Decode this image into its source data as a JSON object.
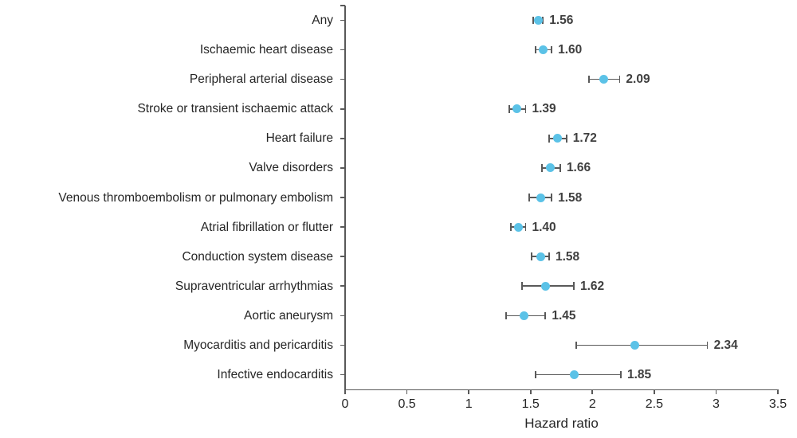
{
  "chart_data": {
    "type": "scatter",
    "variant": "forest-plot-horizontal-error-bars",
    "title": "",
    "xlabel": "Hazard ratio",
    "ylabel": "",
    "xlim": [
      0,
      3.5
    ],
    "xticks": [
      "0",
      "0.5",
      "1",
      "1.5",
      "2",
      "2.5",
      "3",
      "3.5"
    ],
    "grid": false,
    "legend": false,
    "categories": [
      "Any",
      "Ischaemic heart disease",
      "Peripheral arterial disease",
      "Stroke or transient ischaemic attack",
      "Heart failure",
      "Valve disorders",
      "Venous thromboembolism or pulmonary embolism",
      "Atrial fibrillation or flutter",
      "Conduction system disease",
      "Supraventricular arrhythmias",
      "Aortic aneurysm",
      "Myocarditis and pericarditis",
      "Infective endocarditis"
    ],
    "points": [
      {
        "category": "Any",
        "value": 1.56,
        "label": "1.56",
        "ci_lower": 1.52,
        "ci_upper": 1.6
      },
      {
        "category": "Ischaemic heart disease",
        "value": 1.6,
        "label": "1.60",
        "ci_lower": 1.54,
        "ci_upper": 1.67
      },
      {
        "category": "Peripheral arterial disease",
        "value": 2.09,
        "label": "2.09",
        "ci_lower": 1.97,
        "ci_upper": 2.22
      },
      {
        "category": "Stroke or transient ischaemic attack",
        "value": 1.39,
        "label": "1.39",
        "ci_lower": 1.33,
        "ci_upper": 1.46
      },
      {
        "category": "Heart failure",
        "value": 1.72,
        "label": "1.72",
        "ci_lower": 1.65,
        "ci_upper": 1.79
      },
      {
        "category": "Valve disorders",
        "value": 1.66,
        "label": "1.66",
        "ci_lower": 1.59,
        "ci_upper": 1.74
      },
      {
        "category": "Venous thromboembolism or pulmonary embolism",
        "value": 1.58,
        "label": "1.58",
        "ci_lower": 1.49,
        "ci_upper": 1.67
      },
      {
        "category": "Atrial fibrillation or flutter",
        "value": 1.4,
        "label": "1.40",
        "ci_lower": 1.34,
        "ci_upper": 1.46
      },
      {
        "category": "Conduction system disease",
        "value": 1.58,
        "label": "1.58",
        "ci_lower": 1.51,
        "ci_upper": 1.65
      },
      {
        "category": "Supraventricular arrhythmias",
        "value": 1.62,
        "label": "1.62",
        "ci_lower": 1.43,
        "ci_upper": 1.85
      },
      {
        "category": "Aortic aneurysm",
        "value": 1.45,
        "label": "1.45",
        "ci_lower": 1.3,
        "ci_upper": 1.62
      },
      {
        "category": "Myocarditis and pericarditis",
        "value": 2.34,
        "label": "2.34",
        "ci_lower": 1.87,
        "ci_upper": 2.93
      },
      {
        "category": "Infective endocarditis",
        "value": 1.85,
        "label": "1.85",
        "ci_lower": 1.54,
        "ci_upper": 2.23
      }
    ],
    "colors": {
      "marker": "#5BC2E7",
      "error_bar": "#595959",
      "axis": "#595959",
      "label_text": "#262626",
      "value_text": "#3F3F3F",
      "background": "#FFFFFF"
    }
  }
}
